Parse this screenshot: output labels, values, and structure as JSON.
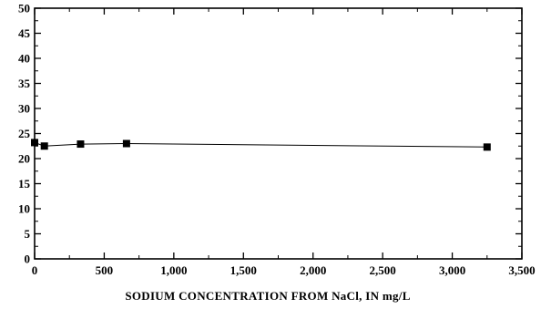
{
  "chart_data": {
    "type": "line",
    "title": "",
    "xlabel": "SODIUM CONCENTRATION FROM NaCl, IN mg/L",
    "ylabel": "",
    "xlim": [
      0,
      3500
    ],
    "ylim": [
      0,
      50
    ],
    "xticks": [
      0,
      500,
      1000,
      1500,
      2000,
      2500,
      3000,
      3500
    ],
    "xtick_labels": [
      "0",
      "500",
      "1,000",
      "1,500",
      "2,000",
      "2,500",
      "3,000",
      "3,500"
    ],
    "yticks": [
      0,
      5,
      10,
      15,
      20,
      25,
      30,
      35,
      40,
      45,
      50
    ],
    "ytick_labels": [
      "0",
      "5",
      "10",
      "15",
      "20",
      "25",
      "30",
      "35",
      "40",
      "45",
      "50"
    ],
    "grid": false,
    "marker": "square",
    "series": [
      {
        "x": [
          0,
          70,
          330,
          660,
          3250
        ],
        "y": [
          23.2,
          22.5,
          22.9,
          23.0,
          22.3
        ]
      }
    ]
  }
}
